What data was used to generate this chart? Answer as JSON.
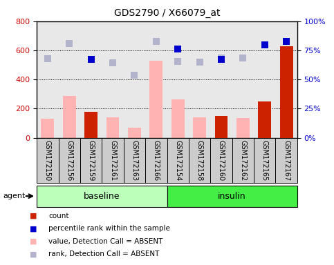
{
  "title": "GDS2790 / X66079_at",
  "samples": [
    "GSM172150",
    "GSM172156",
    "GSM172159",
    "GSM172161",
    "GSM172163",
    "GSM172166",
    "GSM172154",
    "GSM172158",
    "GSM172160",
    "GSM172162",
    "GSM172165",
    "GSM172167"
  ],
  "groups": [
    "baseline",
    "baseline",
    "baseline",
    "baseline",
    "baseline",
    "baseline",
    "insulin",
    "insulin",
    "insulin",
    "insulin",
    "insulin",
    "insulin"
  ],
  "count_values": [
    null,
    null,
    180,
    null,
    null,
    null,
    null,
    null,
    150,
    null,
    250,
    630
  ],
  "percentile_rank": [
    null,
    null,
    540,
    null,
    null,
    null,
    610,
    null,
    540,
    null,
    640,
    660
  ],
  "value_absent": [
    130,
    285,
    null,
    140,
    70,
    530,
    265,
    140,
    null,
    135,
    null,
    null
  ],
  "rank_absent": [
    545,
    645,
    null,
    515,
    430,
    660,
    525,
    520,
    550,
    550,
    null,
    null
  ],
  "left_ylim": [
    0,
    800
  ],
  "left_yticks": [
    0,
    200,
    400,
    600,
    800
  ],
  "right_yticklabels": [
    "0%",
    "25%",
    "50%",
    "75%",
    "100%"
  ],
  "right_ytick_vals": [
    0,
    200,
    400,
    600,
    800
  ],
  "left_color": "#cc0000",
  "right_color": "#0000cc",
  "value_absent_color": "#ffb3b3",
  "rank_absent_color": "#b3b3cc",
  "count_color": "#cc2200",
  "percentile_color": "#0000cc",
  "baseline_color": "#bbffbb",
  "insulin_color": "#44ee44",
  "plot_bg_color": "#e8e8e8",
  "label_bg_color": "#cccccc",
  "legend_labels": [
    "count",
    "percentile rank within the sample",
    "value, Detection Call = ABSENT",
    "rank, Detection Call = ABSENT"
  ],
  "legend_colors": [
    "#cc2200",
    "#0000cc",
    "#ffb3b3",
    "#b3b3cc"
  ],
  "agent_label": "agent",
  "group_labels": [
    "baseline",
    "insulin"
  ],
  "group_label_fontsize": 9,
  "title_fontsize": 10
}
